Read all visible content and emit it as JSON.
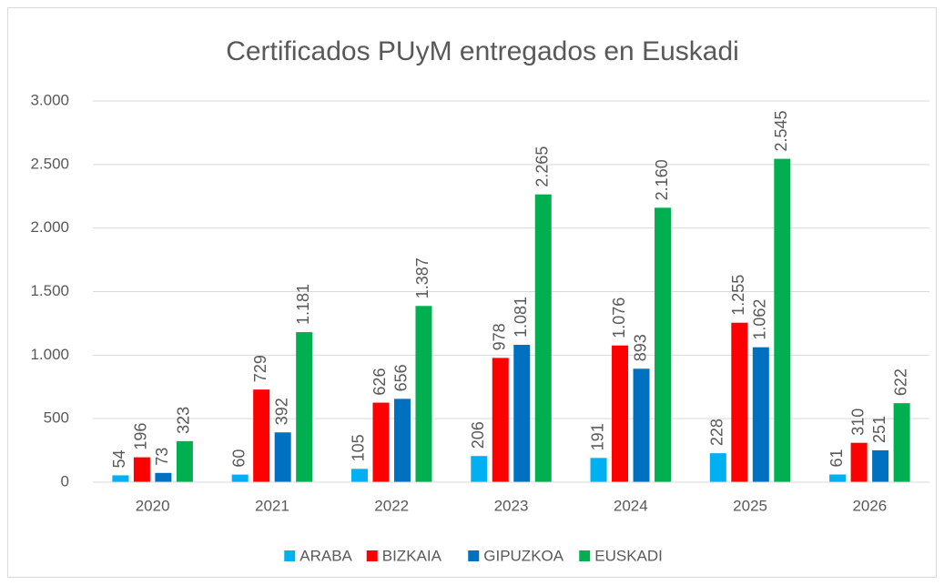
{
  "chart_data": {
    "type": "bar",
    "title": "Certificados PUyM entregados en Euskadi",
    "categories": [
      "2020",
      "2021",
      "2022",
      "2023",
      "2024",
      "2025",
      "2026"
    ],
    "series": [
      {
        "name": "ARABA",
        "color": "#00b0f0",
        "values": [
          54,
          60,
          105,
          206,
          191,
          228,
          61
        ],
        "value_labels": [
          "54",
          "60",
          "105",
          "206",
          "191",
          "228",
          "61"
        ]
      },
      {
        "name": "BIZKAIA",
        "color": "#ff0000",
        "values": [
          196,
          729,
          626,
          978,
          1076,
          1255,
          310
        ],
        "value_labels": [
          "196",
          "729",
          "626",
          "978",
          "1.076",
          "1.255",
          "310"
        ]
      },
      {
        "name": "GIPUZKOA",
        "color": "#0070c0",
        "values": [
          73,
          392,
          656,
          1081,
          893,
          1062,
          251
        ],
        "value_labels": [
          "73",
          "392",
          "656",
          "1.081",
          "893",
          "1.062",
          "251"
        ]
      },
      {
        "name": "EUSKADI",
        "color": "#00b050",
        "values": [
          323,
          1181,
          1387,
          2265,
          2160,
          2545,
          622
        ],
        "value_labels": [
          "323",
          "1.181",
          "1.387",
          "2.265",
          "2.160",
          "2.545",
          "622"
        ]
      }
    ],
    "ylim": [
      0,
      3000
    ],
    "yticks": [
      0,
      500,
      {
        "value": 1000,
        "label": "1.000"
      },
      {
        "value": 1500,
        "label": "1.500"
      },
      {
        "value": 2000,
        "label": "2.000"
      },
      {
        "value": 2500,
        "label": "2.500"
      },
      {
        "value": 3000,
        "label": "3.000"
      }
    ],
    "grid": true,
    "legend": "bottom"
  }
}
